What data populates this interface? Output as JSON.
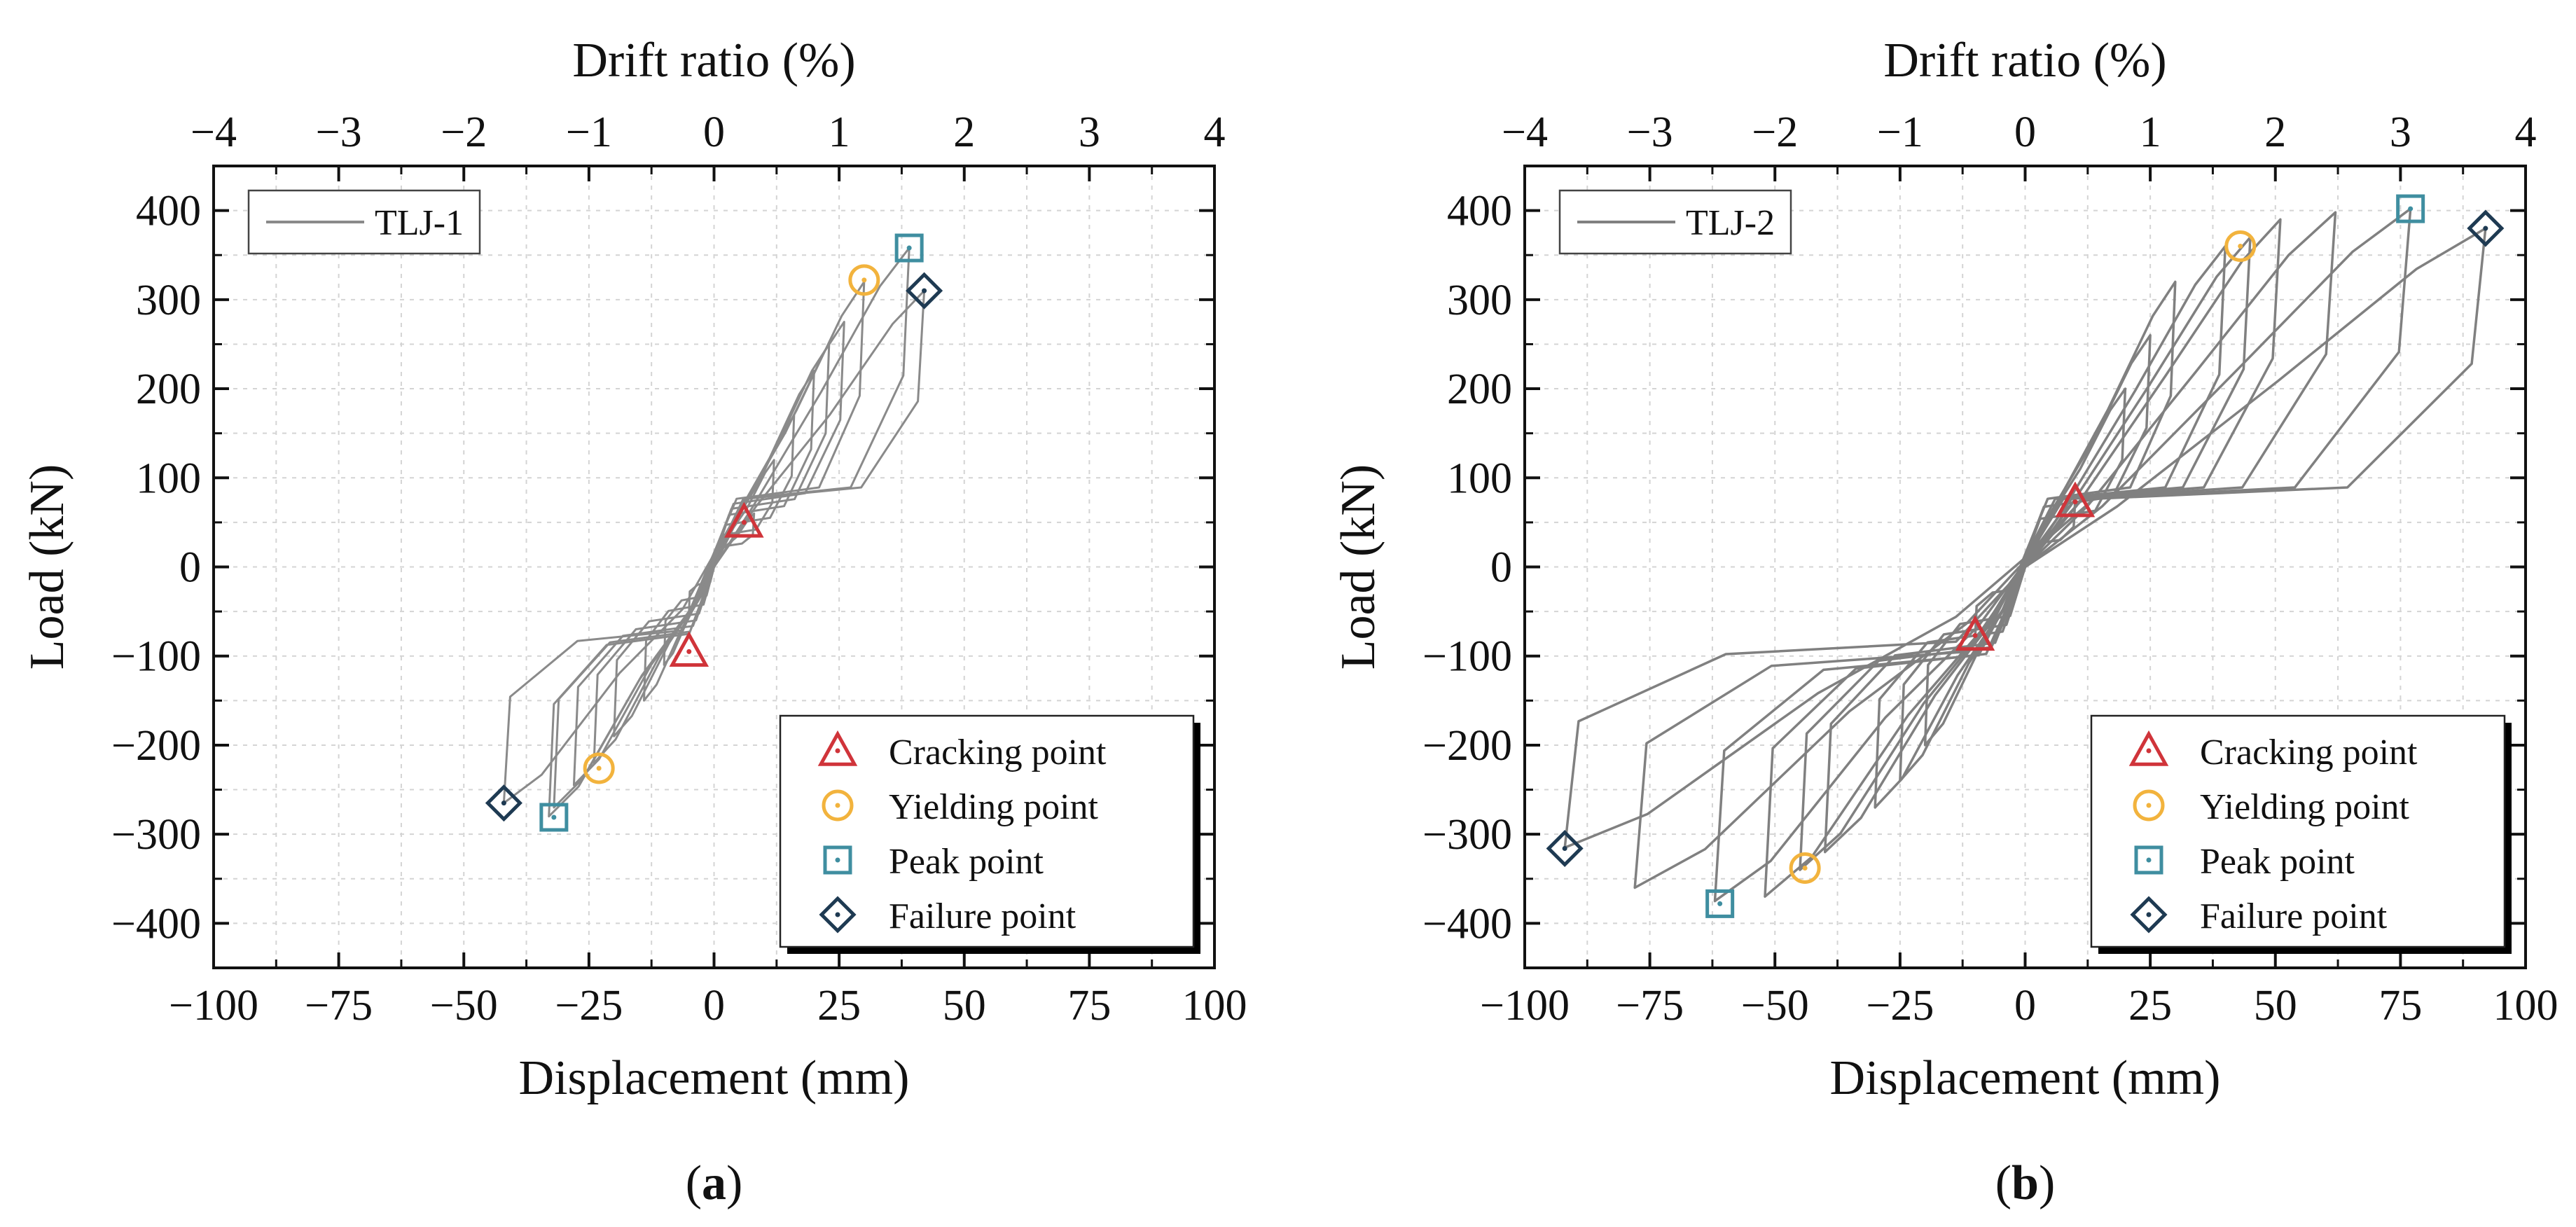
{
  "chart_data": [
    {
      "type": "scatter",
      "panel_label": "a",
      "xlabel": "Displacement (mm)",
      "x2label": "Drift ratio (%)",
      "ylabel": "Load (kN)",
      "xlim": [
        -100,
        100
      ],
      "x2lim": [
        -4,
        4
      ],
      "ylim": [
        -450,
        450
      ],
      "xticks": [
        -100,
        -75,
        -50,
        -25,
        0,
        25,
        50,
        75,
        100
      ],
      "xtick_labels": [
        "−100",
        "−75",
        "−50",
        "−25",
        "0",
        "25",
        "50",
        "75",
        "100"
      ],
      "x2ticks": [
        -4,
        -3,
        -2,
        -1,
        0,
        1,
        2,
        3,
        4
      ],
      "x2tick_labels": [
        "−4",
        "−3",
        "−2",
        "−1",
        "0",
        "1",
        "2",
        "3",
        "4"
      ],
      "yticks": [
        -400,
        -300,
        -200,
        -100,
        0,
        100,
        200,
        300,
        400
      ],
      "ytick_labels": [
        "−400",
        "−300",
        "−200",
        "−100",
        "0",
        "100",
        "200",
        "300",
        "400"
      ],
      "grid": true,
      "legend_curve": {
        "name": "TLJ-1",
        "position": "top-left"
      },
      "legend_points_position": "bottom-right",
      "hysteresis": {
        "color": "#8a8a8a",
        "cycles": [
          {
            "pos": [
              8,
              60
            ],
            "neg": [
              -5,
              -50
            ]
          },
          {
            "pos": [
              12,
              120
            ],
            "neg": [
              -10,
              -110
            ]
          },
          {
            "pos": [
              16,
              170
            ],
            "neg": [
              -14,
              -150
            ]
          },
          {
            "pos": [
              20,
              220
            ],
            "neg": [
              -20,
              -190
            ]
          },
          {
            "pos": [
              23,
              250
            ],
            "neg": [
              -24,
              -220
            ]
          },
          {
            "pos": [
              26,
              275
            ],
            "neg": [
              -28,
              -245
            ]
          },
          {
            "pos": [
              30,
              320
            ],
            "neg": [
              -32,
              -270
            ]
          },
          {
            "pos": [
              39,
              358
            ],
            "neg": [
              -33,
              -280
            ]
          },
          {
            "pos": [
              42,
              310
            ],
            "neg": [
              -42,
              -265
            ]
          }
        ]
      },
      "series": [
        {
          "name": "Cracking point",
          "marker": "triangle",
          "color": "#d0343a",
          "points": [
            [
              6,
              50
            ],
            [
              -5,
              -95
            ]
          ]
        },
        {
          "name": "Yielding point",
          "marker": "circle",
          "color": "#f2b33d",
          "points": [
            [
              30,
              322
            ],
            [
              -23,
              -226
            ]
          ]
        },
        {
          "name": "Peak point",
          "marker": "square",
          "color": "#3f8ea0",
          "points": [
            [
              39,
              358
            ],
            [
              -32,
              -281
            ]
          ]
        },
        {
          "name": "Failure point",
          "marker": "diamond",
          "color": "#1e3a52",
          "points": [
            [
              42,
              310
            ],
            [
              -42,
              -265
            ]
          ]
        }
      ]
    },
    {
      "type": "scatter",
      "panel_label": "b",
      "xlabel": "Displacement (mm)",
      "x2label": "Drift ratio (%)",
      "ylabel": "Load (kN)",
      "xlim": [
        -100,
        100
      ],
      "x2lim": [
        -4,
        4
      ],
      "ylim": [
        -450,
        450
      ],
      "xticks": [
        -100,
        -75,
        -50,
        -25,
        0,
        25,
        50,
        75,
        100
      ],
      "xtick_labels": [
        "−100",
        "−75",
        "−50",
        "−25",
        "0",
        "25",
        "50",
        "75",
        "100"
      ],
      "x2ticks": [
        -4,
        -3,
        -2,
        -1,
        0,
        1,
        2,
        3,
        4
      ],
      "x2tick_labels": [
        "−4",
        "−3",
        "−2",
        "−1",
        "0",
        "1",
        "2",
        "3",
        "4"
      ],
      "yticks": [
        -400,
        -300,
        -200,
        -100,
        0,
        100,
        200,
        300,
        400
      ],
      "ytick_labels": [
        "−400",
        "−300",
        "−200",
        "−100",
        "0",
        "100",
        "200",
        "300",
        "400"
      ],
      "grid": true,
      "legend_curve": {
        "name": "TLJ-2",
        "position": "top-left"
      },
      "legend_points_position": "bottom-right",
      "hysteresis": {
        "color": "#808080",
        "cycles": [
          {
            "pos": [
              10,
              75
            ],
            "neg": [
              -10,
              -80
            ]
          },
          {
            "pos": [
              20,
              200
            ],
            "neg": [
              -20,
              -200
            ]
          },
          {
            "pos": [
              25,
              260
            ],
            "neg": [
              -25,
              -240
            ]
          },
          {
            "pos": [
              30,
              320
            ],
            "neg": [
              -30,
              -270
            ]
          },
          {
            "pos": [
              40,
              360
            ],
            "neg": [
              -40,
              -320
            ]
          },
          {
            "pos": [
              45,
              370
            ],
            "neg": [
              -45,
              -340
            ]
          },
          {
            "pos": [
              51,
              390
            ],
            "neg": [
              -52,
              -370
            ]
          },
          {
            "pos": [
              62,
              398
            ],
            "neg": [
              -62,
              -375
            ]
          },
          {
            "pos": [
              77,
              402
            ],
            "neg": [
              -78,
              -360
            ]
          },
          {
            "pos": [
              92,
              380
            ],
            "neg": [
              -92,
              -315
            ]
          }
        ]
      },
      "series": [
        {
          "name": "Cracking point",
          "marker": "triangle",
          "color": "#d0343a",
          "points": [
            [
              10,
              73
            ],
            [
              -10,
              -77
            ]
          ]
        },
        {
          "name": "Yielding point",
          "marker": "circle",
          "color": "#f2b33d",
          "points": [
            [
              43,
              360
            ],
            [
              -44,
              -338
            ]
          ]
        },
        {
          "name": "Peak point",
          "marker": "square",
          "color": "#3f8ea0",
          "points": [
            [
              77,
              402
            ],
            [
              -61,
              -378
            ]
          ]
        },
        {
          "name": "Failure point",
          "marker": "diamond",
          "color": "#1e3a52",
          "points": [
            [
              92,
              380
            ],
            [
              -92,
              -316
            ]
          ]
        }
      ]
    }
  ]
}
